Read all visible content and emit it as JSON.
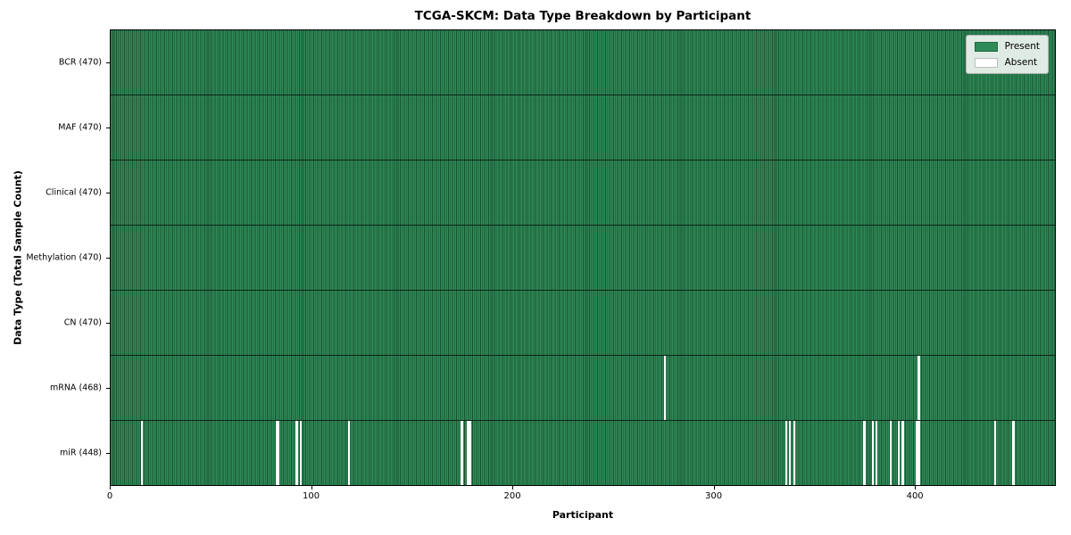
{
  "chart_data": {
    "type": "heatmap",
    "title": "TCGA-SKCM: Data Type Breakdown by Participant",
    "xlabel": "Participant",
    "ylabel": "Data Type (Total Sample Count)",
    "n_participants": 470,
    "x_range": [
      0,
      470
    ],
    "x_ticks": [
      0,
      100,
      200,
      300,
      400
    ],
    "grid": false,
    "legend_position": "upper right",
    "legend": [
      {
        "label": "Present",
        "color": "#2e8b57"
      },
      {
        "label": "Absent",
        "color": "#ffffff"
      }
    ],
    "colors": {
      "present_fill": "#2e8b57",
      "present_edge": "#1b5233",
      "absent_fill": "#ffffff",
      "row_separator": "#0d2417",
      "spine": "#000000"
    },
    "rows": [
      {
        "label": "BCR (470)",
        "data_type": "BCR",
        "present_count": 470,
        "absent_participants": []
      },
      {
        "label": "MAF (470)",
        "data_type": "MAF",
        "present_count": 470,
        "absent_participants": []
      },
      {
        "label": "Clinical (470)",
        "data_type": "Clinical",
        "present_count": 470,
        "absent_participants": []
      },
      {
        "label": "Methylation (470)",
        "data_type": "Methylation",
        "present_count": 470,
        "absent_participants": []
      },
      {
        "label": "CN (470)",
        "data_type": "CN",
        "present_count": 470,
        "absent_participants": []
      },
      {
        "label": "mRNA (468)",
        "data_type": "mRNA",
        "present_count": 468,
        "absent_participants": [
          275,
          401
        ]
      },
      {
        "label": "miR (448)",
        "data_type": "miR",
        "present_count": 448,
        "absent_participants": [
          15,
          82,
          83,
          92,
          94,
          118,
          174,
          177,
          178,
          335,
          337,
          339,
          374,
          378,
          380,
          387,
          391,
          393,
          400,
          401,
          439,
          448
        ]
      }
    ]
  }
}
